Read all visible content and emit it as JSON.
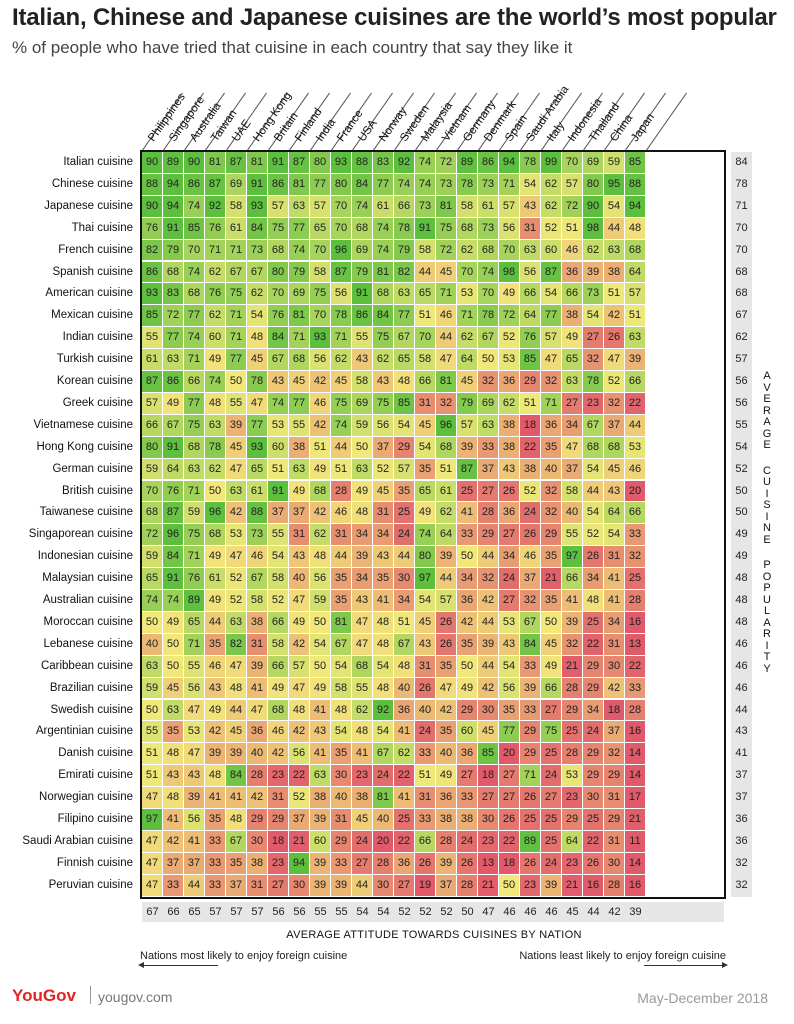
{
  "title": "Italian, Chinese and Japanese cuisines are the world’s most popular",
  "subtitle": "% of people who have tried that cuisine in each country that say they like it",
  "chart_data": {
    "type": "heatmap",
    "countries": [
      "Philippines",
      "Singapore",
      "Australia",
      "Taiwan",
      "UAE",
      "Hong Kong",
      "Britain",
      "Finland",
      "India",
      "France",
      "USA",
      "Norway",
      "Sweden",
      "Malaysia",
      "Vietnam",
      "Germany",
      "Denmark",
      "Spain",
      "Saudi Arabia",
      "Italy",
      "Indonesia",
      "Thailand",
      "China",
      "Japan"
    ],
    "rows": [
      {
        "cuisine": "Italian cuisine",
        "values": [
          90,
          89,
          90,
          81,
          87,
          81,
          91,
          87,
          80,
          93,
          88,
          83,
          92,
          74,
          72,
          89,
          86,
          94,
          78,
          99,
          70,
          69,
          59,
          85
        ],
        "avg": 84
      },
      {
        "cuisine": "Chinese cuisine",
        "values": [
          88,
          94,
          86,
          87,
          69,
          91,
          86,
          81,
          77,
          80,
          84,
          77,
          74,
          74,
          73,
          78,
          73,
          71,
          54,
          62,
          57,
          80,
          95,
          88
        ],
        "avg": 78
      },
      {
        "cuisine": "Japanese cuisine",
        "values": [
          90,
          94,
          74,
          92,
          58,
          93,
          57,
          63,
          57,
          70,
          74,
          61,
          66,
          73,
          81,
          58,
          61,
          57,
          43,
          62,
          72,
          90,
          54,
          94
        ],
        "avg": 71
      },
      {
        "cuisine": "Thai cuisine",
        "values": [
          76,
          91,
          85,
          76,
          61,
          84,
          75,
          77,
          65,
          70,
          68,
          74,
          78,
          91,
          75,
          68,
          73,
          56,
          31,
          52,
          51,
          98,
          44,
          48
        ],
        "avg": 70
      },
      {
        "cuisine": "French cuisine",
        "values": [
          82,
          79,
          70,
          71,
          71,
          73,
          68,
          74,
          70,
          96,
          69,
          74,
          79,
          58,
          72,
          62,
          68,
          70,
          63,
          60,
          46,
          62,
          63,
          68
        ],
        "avg": 70
      },
      {
        "cuisine": "Spanish cuisine",
        "values": [
          86,
          68,
          74,
          62,
          67,
          67,
          80,
          79,
          58,
          87,
          79,
          81,
          82,
          44,
          45,
          70,
          74,
          98,
          56,
          87,
          36,
          39,
          38,
          64
        ],
        "avg": 68
      },
      {
        "cuisine": "American cuisine",
        "values": [
          93,
          83,
          68,
          76,
          75,
          62,
          70,
          69,
          75,
          56,
          91,
          68,
          63,
          65,
          71,
          53,
          70,
          49,
          66,
          54,
          66,
          73,
          51,
          57
        ],
        "avg": 68
      },
      {
        "cuisine": "Mexican cuisine",
        "values": [
          85,
          72,
          77,
          62,
          71,
          54,
          76,
          81,
          70,
          78,
          86,
          84,
          77,
          51,
          46,
          71,
          78,
          72,
          64,
          77,
          38,
          54,
          42,
          51
        ],
        "avg": 67
      },
      {
        "cuisine": "Indian cuisine",
        "values": [
          55,
          77,
          74,
          60,
          71,
          48,
          84,
          71,
          93,
          71,
          55,
          75,
          67,
          70,
          44,
          62,
          67,
          52,
          76,
          57,
          49,
          27,
          26,
          63
        ],
        "avg": 62
      },
      {
        "cuisine": "Turkish cuisine",
        "values": [
          61,
          63,
          71,
          49,
          77,
          45,
          67,
          68,
          56,
          62,
          43,
          62,
          65,
          58,
          47,
          64,
          50,
          53,
          85,
          47,
          65,
          32,
          47,
          39
        ],
        "avg": 57
      },
      {
        "cuisine": "Korean cuisine",
        "values": [
          87,
          86,
          66,
          74,
          50,
          78,
          43,
          45,
          42,
          45,
          58,
          43,
          48,
          66,
          81,
          45,
          32,
          36,
          29,
          32,
          63,
          78,
          52,
          66
        ],
        "avg": 56
      },
      {
        "cuisine": "Greek cuisine",
        "values": [
          57,
          49,
          77,
          48,
          55,
          47,
          74,
          77,
          46,
          75,
          69,
          75,
          85,
          31,
          32,
          79,
          69,
          62,
          51,
          71,
          27,
          23,
          32,
          22
        ],
        "avg": 56
      },
      {
        "cuisine": "Vietnamese cuisine",
        "values": [
          66,
          67,
          75,
          63,
          39,
          77,
          53,
          55,
          42,
          74,
          59,
          56,
          54,
          45,
          96,
          57,
          63,
          38,
          18,
          36,
          34,
          67,
          37,
          44
        ],
        "avg": 55
      },
      {
        "cuisine": "Hong Kong cuisine",
        "values": [
          80,
          91,
          68,
          78,
          45,
          93,
          60,
          38,
          51,
          44,
          50,
          37,
          29,
          54,
          68,
          39,
          33,
          38,
          22,
          35,
          47,
          68,
          68,
          53
        ],
        "avg": 54
      },
      {
        "cuisine": "German cuisine",
        "values": [
          59,
          64,
          63,
          62,
          47,
          65,
          51,
          63,
          49,
          51,
          63,
          52,
          57,
          35,
          51,
          87,
          37,
          43,
          38,
          40,
          37,
          54,
          45,
          46
        ],
        "avg": 52
      },
      {
        "cuisine": "British cuisine",
        "values": [
          70,
          76,
          71,
          50,
          63,
          61,
          91,
          49,
          68,
          28,
          49,
          45,
          35,
          65,
          61,
          25,
          27,
          26,
          52,
          32,
          58,
          44,
          43,
          20
        ],
        "avg": 50
      },
      {
        "cuisine": "Taiwanese cuisine",
        "values": [
          68,
          87,
          59,
          96,
          42,
          88,
          37,
          37,
          42,
          46,
          48,
          31,
          25,
          49,
          62,
          41,
          28,
          36,
          24,
          32,
          40,
          54,
          64,
          66
        ],
        "avg": 50
      },
      {
        "cuisine": "Singaporean cuisine",
        "values": [
          72,
          96,
          75,
          68,
          53,
          73,
          55,
          31,
          62,
          31,
          34,
          34,
          24,
          74,
          64,
          33,
          29,
          27,
          26,
          29,
          55,
          52,
          54,
          33
        ],
        "avg": 49
      },
      {
        "cuisine": "Indonesian cuisine",
        "values": [
          59,
          84,
          71,
          49,
          47,
          46,
          54,
          43,
          48,
          44,
          39,
          43,
          44,
          80,
          39,
          50,
          44,
          34,
          46,
          35,
          97,
          26,
          31,
          32
        ],
        "avg": 49
      },
      {
        "cuisine": "Malaysian cuisine",
        "values": [
          65,
          91,
          76,
          61,
          52,
          67,
          58,
          40,
          56,
          35,
          34,
          35,
          30,
          97,
          44,
          34,
          32,
          24,
          37,
          21,
          66,
          34,
          41,
          25
        ],
        "avg": 48
      },
      {
        "cuisine": "Australian cuisine",
        "values": [
          74,
          74,
          89,
          49,
          52,
          58,
          52,
          47,
          59,
          35,
          43,
          41,
          34,
          54,
          57,
          36,
          42,
          27,
          32,
          35,
          41,
          48,
          41,
          28
        ],
        "avg": 48
      },
      {
        "cuisine": "Moroccan cuisine",
        "values": [
          50,
          49,
          65,
          44,
          63,
          38,
          66,
          49,
          50,
          81,
          47,
          48,
          51,
          45,
          26,
          42,
          44,
          53,
          67,
          50,
          39,
          25,
          34,
          16
        ],
        "avg": 48
      },
      {
        "cuisine": "Lebanese cuisine",
        "values": [
          40,
          50,
          71,
          35,
          82,
          31,
          58,
          42,
          54,
          67,
          47,
          48,
          67,
          43,
          26,
          35,
          39,
          43,
          84,
          45,
          32,
          22,
          31,
          13
        ],
        "avg": 46
      },
      {
        "cuisine": "Caribbean cuisine",
        "values": [
          63,
          50,
          55,
          46,
          47,
          39,
          66,
          57,
          50,
          54,
          68,
          54,
          48,
          31,
          35,
          50,
          44,
          54,
          33,
          49,
          21,
          29,
          30,
          22
        ],
        "avg": 46
      },
      {
        "cuisine": "Brazilian cuisine",
        "values": [
          59,
          45,
          56,
          43,
          48,
          41,
          49,
          47,
          49,
          58,
          55,
          48,
          40,
          26,
          47,
          49,
          42,
          56,
          39,
          66,
          28,
          29,
          42,
          33
        ],
        "avg": 46
      },
      {
        "cuisine": "Swedish cuisine",
        "values": [
          50,
          63,
          47,
          49,
          44,
          47,
          68,
          48,
          41,
          48,
          62,
          92,
          36,
          40,
          42,
          29,
          30,
          35,
          33,
          27,
          29,
          34,
          18,
          28
        ],
        "avg": 44
      },
      {
        "cuisine": "Argentinian cuisine",
        "values": [
          55,
          35,
          53,
          42,
          45,
          36,
          46,
          42,
          43,
          54,
          48,
          54,
          41,
          24,
          35,
          60,
          45,
          77,
          29,
          75,
          25,
          24,
          37,
          16
        ],
        "avg": 43
      },
      {
        "cuisine": "Danish cuisine",
        "values": [
          51,
          48,
          47,
          39,
          39,
          40,
          42,
          56,
          41,
          35,
          41,
          67,
          62,
          33,
          40,
          36,
          85,
          20,
          29,
          25,
          28,
          29,
          32,
          14
        ],
        "avg": 41
      },
      {
        "cuisine": "Emirati cuisine",
        "values": [
          51,
          43,
          43,
          48,
          84,
          28,
          23,
          22,
          63,
          30,
          23,
          24,
          22,
          51,
          49,
          27,
          18,
          27,
          71,
          24,
          53,
          29,
          29,
          14
        ],
        "avg": 37
      },
      {
        "cuisine": "Norwegian cuisine",
        "values": [
          47,
          48,
          39,
          41,
          41,
          42,
          31,
          52,
          38,
          40,
          38,
          81,
          41,
          31,
          36,
          33,
          27,
          27,
          26,
          27,
          23,
          30,
          31,
          17
        ],
        "avg": 37
      },
      {
        "cuisine": "Filipino cuisine",
        "values": [
          97,
          41,
          56,
          35,
          48,
          29,
          29,
          37,
          39,
          31,
          45,
          40,
          25,
          33,
          38,
          38,
          30,
          26,
          25,
          25,
          29,
          25,
          29,
          21
        ],
        "avg": 36
      },
      {
        "cuisine": "Saudi Arabian cuisine",
        "values": [
          47,
          42,
          41,
          33,
          67,
          30,
          18,
          21,
          60,
          29,
          24,
          20,
          22,
          66,
          28,
          24,
          23,
          22,
          89,
          25,
          64,
          22,
          31,
          11
        ],
        "avg": 36
      },
      {
        "cuisine": "Finnish cuisine",
        "values": [
          47,
          37,
          37,
          33,
          35,
          38,
          23,
          94,
          39,
          33,
          27,
          28,
          36,
          26,
          39,
          26,
          13,
          18,
          26,
          24,
          23,
          26,
          30,
          14
        ],
        "avg": 32
      },
      {
        "cuisine": "Peruvian cuisine",
        "values": [
          47,
          33,
          44,
          33,
          37,
          31,
          27,
          30,
          39,
          39,
          44,
          30,
          27,
          19,
          37,
          28,
          21,
          50,
          23,
          39,
          21,
          16,
          28,
          16
        ],
        "avg": 32
      }
    ],
    "country_averages": [
      67,
      66,
      65,
      57,
      57,
      57,
      56,
      56,
      55,
      55,
      54,
      54,
      52,
      52,
      52,
      50,
      47,
      46,
      46,
      46,
      45,
      44,
      42,
      39
    ],
    "right_axis_label": "AVERAGE CUISINE POPULARITY",
    "bottom_axis_label": "AVERAGE ATTITUDE TOWARDS CUISINES BY NATION",
    "color_scale": {
      "low": "#e05a6b",
      "mid": "#f2e87a",
      "high": "#5cbf3e"
    }
  },
  "notes": {
    "left": "Nations most likely to enjoy foreign cuisine",
    "right": "Nations least likely to enjoy foreign cuisine"
  },
  "footer": {
    "brand": "YouGov",
    "url": "yougov.com",
    "date": "May-December 2018"
  }
}
